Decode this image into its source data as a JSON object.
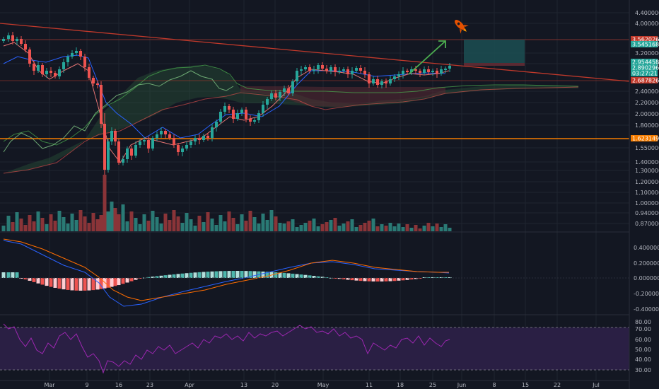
{
  "colors": {
    "background": "#131722",
    "grid": "#1f2430",
    "axis_text": "#b2b5be",
    "up": "#26a69a",
    "down": "#ef5350",
    "volume_up": "#2a7a75",
    "volume_down": "#8a3438",
    "trendline": "#c0392b",
    "support": "#f57c00",
    "resistance": "#c0392b",
    "kumo_bull": "#2e5f3b",
    "kumo_bear": "#5a2a33",
    "kijun": "#2962ff",
    "arrow": "#4caf50",
    "target_box": "#1c4f52",
    "macd": "#2962ff",
    "signal": "#ff6d00",
    "rsi": "#9c27b0",
    "rsi_band": "#2a1f44"
  },
  "price_axis": {
    "labels": [
      "4.4000000",
      "4.0000000",
      "3.6000000",
      "3.2000000",
      "2.8000000",
      "2.4000000",
      "2.2000000",
      "2.0000000",
      "1.8000000",
      "1.5500000",
      "1.4000000",
      "1.3000000",
      "1.2000000",
      "1.1000000",
      "1.0000000",
      "0.9400000",
      "0.8700000"
    ],
    "badges": [
      {
        "text": "3.5620260",
        "color": "#c0392b"
      },
      {
        "text": "3.5451685",
        "color": "#26a69a"
      },
      {
        "text": "2.9544585",
        "color": "#26a69a"
      },
      {
        "text": "2.8902966",
        "color": "#26a69a"
      },
      {
        "text": "03:27:21",
        "color": "#26a69a"
      },
      {
        "text": "2.6878261",
        "color": "#c0392b"
      },
      {
        "text": "1.6231497",
        "color": "#f57c00"
      }
    ]
  },
  "macd_axis": {
    "labels": [
      "0.4000000",
      "0.2000000",
      "0.0000000",
      "-0.2000000",
      "-0.4000000"
    ]
  },
  "rsi_axis": {
    "labels": [
      "80.00",
      "70.00",
      "60.00",
      "50.00",
      "40.00",
      "30.00"
    ]
  },
  "time_axis": {
    "labels": [
      "Mar",
      "9",
      "16",
      "23",
      "Apr",
      "13",
      "20",
      "May",
      "11",
      "18",
      "25",
      "Jun",
      "8",
      "15",
      "22",
      "Jul"
    ]
  },
  "icons": {
    "target": "rocket-icon",
    "projection": "arrow-up-right-icon"
  }
}
